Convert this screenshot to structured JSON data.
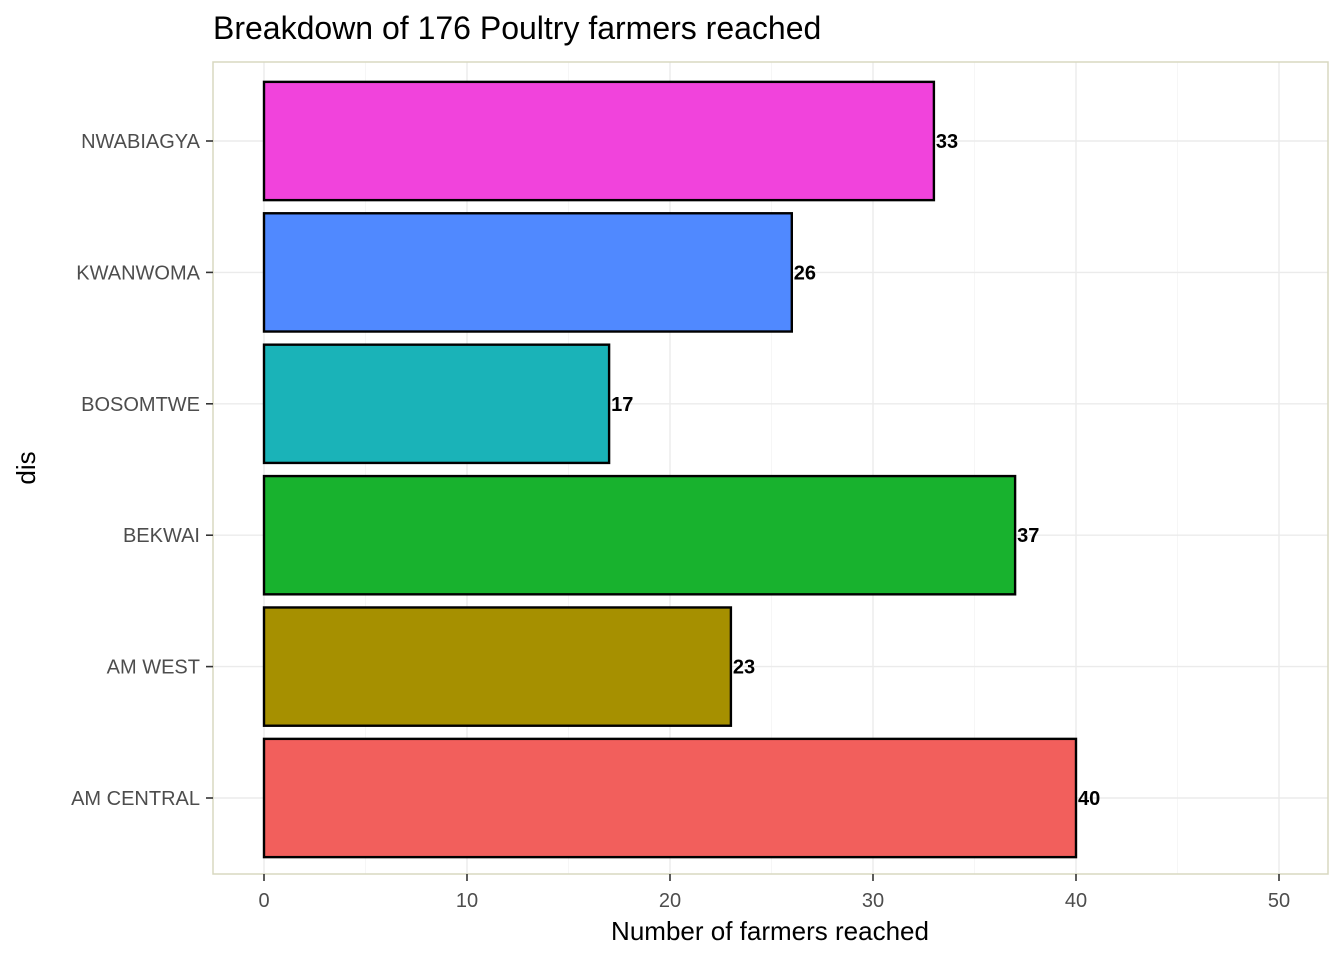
{
  "chart_data": {
    "type": "bar",
    "orientation": "horizontal",
    "title": "Breakdown of 176 Poultry farmers reached",
    "xlabel": "Number of farmers reached",
    "ylabel": "dis",
    "categories": [
      "AM CENTRAL",
      "AM WEST",
      "BEKWAI",
      "BOSOMTWE",
      "KWANWOMA",
      "NWABIAGYA"
    ],
    "values": [
      40,
      23,
      37,
      17,
      26,
      33
    ],
    "data_labels": [
      "40",
      "23",
      "37",
      "17",
      "26",
      "33"
    ],
    "colors": [
      "#F25F5C",
      "#A69000",
      "#18B22E",
      "#1AB3B8",
      "#5089FF",
      "#F143DC"
    ],
    "xlim": [
      0,
      50
    ],
    "xticks": [
      0,
      10,
      20,
      30,
      40,
      50
    ],
    "xtick_labels": [
      "0",
      "10",
      "20",
      "30",
      "40",
      "50"
    ],
    "grid": true,
    "legend": "none",
    "panel_border_color": "#D8D8C0",
    "bar_outline_color": "#000000"
  }
}
